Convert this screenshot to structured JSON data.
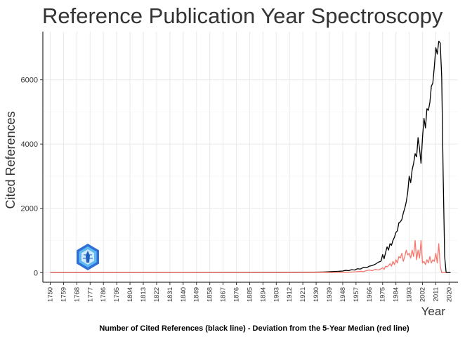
{
  "chart_data": {
    "type": "line",
    "title": "Reference Publication Year Spectroscopy",
    "xlabel": "Year",
    "ylabel": "Cited References",
    "caption": "Number of Cited References (black line) - Deviation from the 5-Year Median (red line)",
    "xlim": [
      1745,
      2026
    ],
    "ylim": [
      -300,
      7500
    ],
    "yticks": [
      0,
      2000,
      4000,
      6000
    ],
    "xticks": [
      1750,
      1759,
      1768,
      1777,
      1786,
      1795,
      1804,
      1813,
      1822,
      1831,
      1840,
      1849,
      1858,
      1867,
      1876,
      1885,
      1894,
      1903,
      1912,
      1921,
      1930,
      1939,
      1948,
      1957,
      1966,
      1975,
      1984,
      1993,
      2002,
      2011,
      2020
    ],
    "grid": true,
    "legend": "none",
    "series": [
      {
        "color": "#000000",
        "x": [
          1750,
          1900,
          1925,
          1935,
          1940,
          1945,
          1948,
          1950,
          1952,
          1954,
          1956,
          1958,
          1960,
          1962,
          1964,
          1966,
          1968,
          1970,
          1972,
          1974,
          1975,
          1976,
          1977,
          1978,
          1979,
          1980,
          1981,
          1982,
          1983,
          1984,
          1985,
          1986,
          1987,
          1988,
          1989,
          1990,
          1991,
          1992,
          1993,
          1994,
          1995,
          1996,
          1997,
          1998,
          1999,
          2000,
          2001,
          2002,
          2003,
          2004,
          2005,
          2006,
          2007,
          2008,
          2009,
          2010,
          2011,
          2012,
          2013,
          2014,
          2015,
          2016,
          2017,
          2018,
          2019,
          2020,
          2021
        ],
        "values": [
          0,
          5,
          10,
          20,
          30,
          40,
          50,
          70,
          60,
          90,
          80,
          120,
          110,
          160,
          150,
          200,
          220,
          260,
          320,
          360,
          560,
          430,
          620,
          800,
          700,
          900,
          850,
          1000,
          1100,
          1250,
          1300,
          1550,
          1580,
          1650,
          1850,
          2000,
          2200,
          2500,
          3000,
          2800,
          3200,
          3400,
          3700,
          3600,
          4200,
          3850,
          3400,
          4200,
          4800,
          4500,
          5100,
          5050,
          5300,
          5800,
          5900,
          6400,
          7000,
          6800,
          7200,
          7150,
          6100,
          3000,
          500,
          0,
          0,
          0,
          0
        ]
      },
      {
        "color": "#F8766D",
        "x": [
          1750,
          1900,
          1925,
          1935,
          1940,
          1945,
          1950,
          1955,
          1958,
          1960,
          1962,
          1964,
          1966,
          1968,
          1970,
          1972,
          1974,
          1975,
          1976,
          1977,
          1978,
          1979,
          1980,
          1981,
          1982,
          1983,
          1984,
          1985,
          1986,
          1987,
          1988,
          1989,
          1990,
          1991,
          1992,
          1993,
          1994,
          1995,
          1996,
          1997,
          1998,
          1999,
          2000,
          2001,
          2002,
          2003,
          2004,
          2005,
          2006,
          2007,
          2008,
          2009,
          2010,
          2011,
          2012,
          2013,
          2014,
          2015,
          2016,
          2017,
          2018
        ],
        "values": [
          0,
          0,
          5,
          10,
          5,
          15,
          10,
          20,
          30,
          40,
          30,
          60,
          80,
          60,
          100,
          80,
          120,
          150,
          100,
          200,
          180,
          220,
          280,
          200,
          350,
          250,
          400,
          300,
          500,
          450,
          600,
          350,
          500,
          700,
          550,
          600,
          450,
          700,
          500,
          1000,
          400,
          700,
          450,
          1000,
          300,
          350,
          250,
          400,
          300,
          500,
          300,
          400,
          350,
          600,
          300,
          900,
          200,
          0,
          0,
          0,
          0
        ]
      }
    ]
  }
}
